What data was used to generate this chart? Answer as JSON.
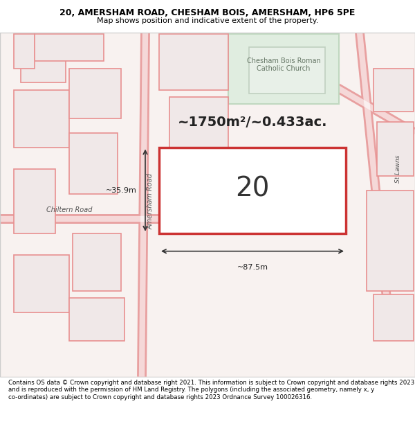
{
  "title_line1": "20, AMERSHAM ROAD, CHESHAM BOIS, AMERSHAM, HP6 5PE",
  "title_line2": "Map shows position and indicative extent of the property.",
  "footer_text": "Contains OS data © Crown copyright and database right 2021. This information is subject to Crown copyright and database rights 2023 and is reproduced with the permission of HM Land Registry. The polygons (including the associated geometry, namely x, y co-ordinates) are subject to Crown copyright and database rights 2023 Ordnance Survey 100026316.",
  "background_color": "#f5f0f0",
  "map_bg": "#f8f4f2",
  "highlight_fill": "#e8f0e8",
  "road_color": "#e8a0a0",
  "highlight_road": "#cc3333",
  "building_fill": "#f0e8e8",
  "building_stroke": "#e89090",
  "green_fill": "#e0ede0",
  "green_stroke": "#c0d8c0",
  "label_20": "20",
  "area_label": "~1750m²/~0.433ac.",
  "width_label": "~87.5m",
  "height_label": "~35.9m",
  "amersham_road_label": "Amersham Road",
  "chiltern_road_label": "Chiltern Road",
  "church_label": "Chesham Bois Roman\nCatholic Church",
  "st_lawns_label": "St Lawns"
}
